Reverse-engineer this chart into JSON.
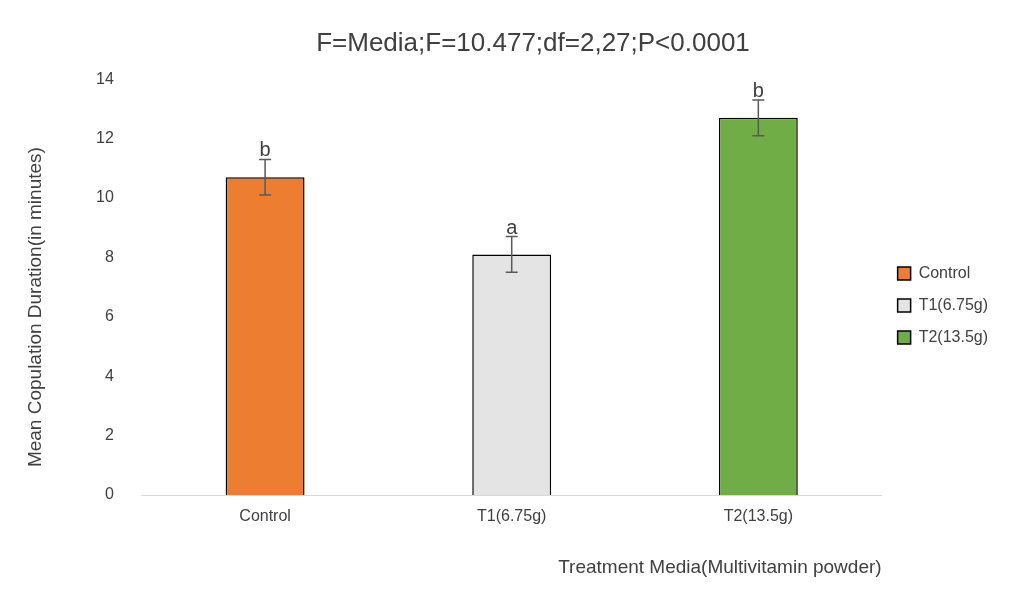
{
  "chart_data": {
    "type": "bar",
    "title": "F=Media;F=10.477;df=2,27;P<0.0001",
    "xlabel": "Treatment Media(Multivitamin powder)",
    "ylabel": "Mean Copulation Duration(in minutes)",
    "categories": [
      "Control",
      "T1(6.75g)",
      "T2(13.5g)"
    ],
    "series": [
      {
        "name": "Control",
        "color": "#ed7d31",
        "values": [
          10.7,
          null,
          null
        ],
        "errors": [
          0.6,
          null,
          null
        ]
      },
      {
        "name": "T1(6.75g)",
        "color": "#e4e4e4",
        "values": [
          null,
          8.1,
          null
        ],
        "errors": [
          null,
          0.6,
          null
        ]
      },
      {
        "name": "T2(13.5g)",
        "color": "#70ad47",
        "values": [
          null,
          null,
          12.7
        ],
        "errors": [
          null,
          null,
          0.6
        ]
      }
    ],
    "ylim": [
      0,
      14
    ],
    "yticks": [
      0,
      2,
      4,
      6,
      8,
      10,
      12,
      14
    ],
    "legend": "right",
    "grid": false,
    "annotations": [
      {
        "text": "b",
        "x": "Control",
        "y": 11.3
      },
      {
        "text": "a",
        "x": "T1(6.75g)",
        "y": 8.7
      },
      {
        "text": "b",
        "x": "T2(13.5g)",
        "y": 13.3
      }
    ]
  }
}
